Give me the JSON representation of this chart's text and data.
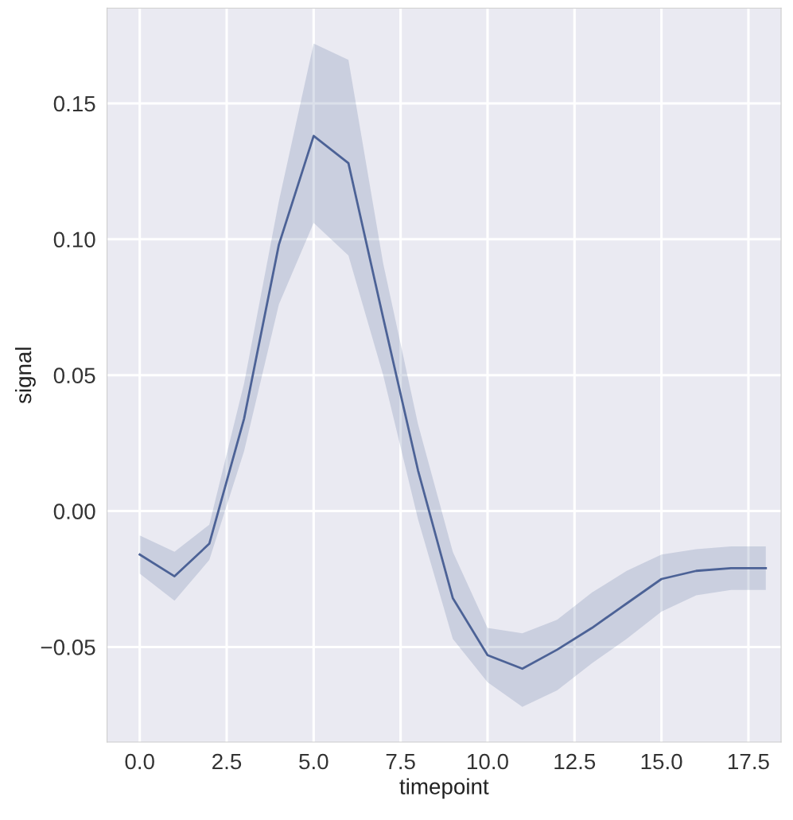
{
  "chart_data": {
    "type": "line",
    "xlabel": "timepoint",
    "ylabel": "signal",
    "x": [
      0,
      1,
      2,
      3,
      4,
      5,
      6,
      7,
      8,
      9,
      10,
      11,
      12,
      13,
      14,
      15,
      16,
      17,
      18
    ],
    "series": [
      {
        "color": "#4c6296",
        "values": [
          -0.016,
          -0.024,
          -0.012,
          0.034,
          0.098,
          0.138,
          0.128,
          0.071,
          0.015,
          -0.032,
          -0.053,
          -0.058,
          -0.051,
          -0.043,
          -0.034,
          -0.025,
          -0.022,
          -0.021,
          -0.021
        ],
        "upper": [
          -0.009,
          -0.015,
          -0.005,
          0.047,
          0.114,
          0.172,
          0.166,
          0.091,
          0.032,
          -0.015,
          -0.043,
          -0.045,
          -0.04,
          -0.03,
          -0.022,
          -0.016,
          -0.014,
          -0.013,
          -0.013
        ],
        "lower": [
          -0.023,
          -0.033,
          -0.018,
          0.022,
          0.076,
          0.106,
          0.094,
          0.05,
          -0.003,
          -0.047,
          -0.063,
          -0.072,
          -0.066,
          -0.056,
          -0.047,
          -0.037,
          -0.031,
          -0.029,
          -0.029
        ]
      }
    ],
    "xlim": [
      -0.94,
      18.44
    ],
    "ylim": [
      -0.085,
      0.185
    ],
    "xticks": [
      {
        "value": 0,
        "label": "0.0"
      },
      {
        "value": 2.5,
        "label": "2.5"
      },
      {
        "value": 5,
        "label": "5.0"
      },
      {
        "value": 7.5,
        "label": "7.5"
      },
      {
        "value": 10,
        "label": "10.0"
      },
      {
        "value": 12.5,
        "label": "12.5"
      },
      {
        "value": 15,
        "label": "15.0"
      },
      {
        "value": 17.5,
        "label": "17.5"
      }
    ],
    "yticks": [
      {
        "value": -0.05,
        "label": "−0.05"
      },
      {
        "value": 0,
        "label": "0.00"
      },
      {
        "value": 0.05,
        "label": "0.05"
      },
      {
        "value": 0.1,
        "label": "0.10"
      },
      {
        "value": 0.15,
        "label": "0.15"
      }
    ],
    "grid": true,
    "marker": "none",
    "line_style": "solid"
  }
}
